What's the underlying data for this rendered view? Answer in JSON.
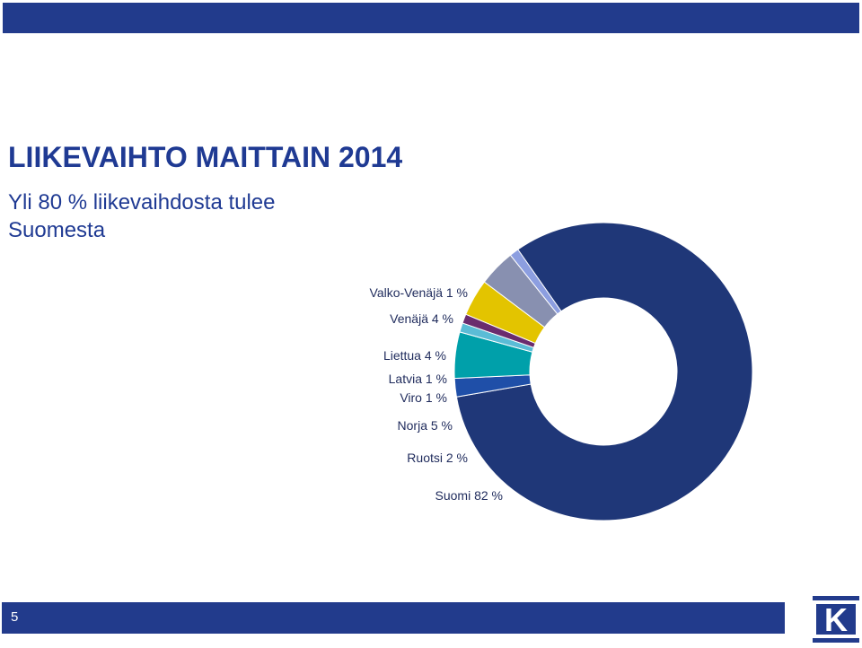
{
  "slide": {
    "title": "LIIKEVAIHTO MAITTAIN 2014",
    "subtitle": "Yli 80 % liikevaihdosta tulee Suomesta",
    "page_number": "5",
    "logo_letter": "K",
    "colors": {
      "bar": "#223b8c",
      "title": "#1f3a93",
      "logo": "#223b8c"
    }
  },
  "chart_data": {
    "type": "pie",
    "variant": "donut",
    "title": "",
    "slices": [
      {
        "name": "Suomi",
        "value": 82,
        "label": "Suomi 82 %",
        "color": "#1f3778"
      },
      {
        "name": "Ruotsi",
        "value": 2,
        "label": "Ruotsi 2 %",
        "color": "#1f4fa8"
      },
      {
        "name": "Norja",
        "value": 5,
        "label": "Norja 5 %",
        "color": "#00a0aa"
      },
      {
        "name": "Viro",
        "value": 1,
        "label": "Viro 1 %",
        "color": "#5bbcd6"
      },
      {
        "name": "Latvia",
        "value": 1,
        "label": "Latvia 1 %",
        "color": "#6a2c6e"
      },
      {
        "name": "Liettua",
        "value": 4,
        "label": "Liettua 4 %",
        "color": "#e3c400"
      },
      {
        "name": "Venäjä",
        "value": 4,
        "label": "Venäjä 4 %",
        "color": "#8890b0"
      },
      {
        "name": "Valko-Venäjä",
        "value": 1,
        "label": "Valko-Venäjä 1 %",
        "color": "#8c9ee0"
      }
    ]
  }
}
